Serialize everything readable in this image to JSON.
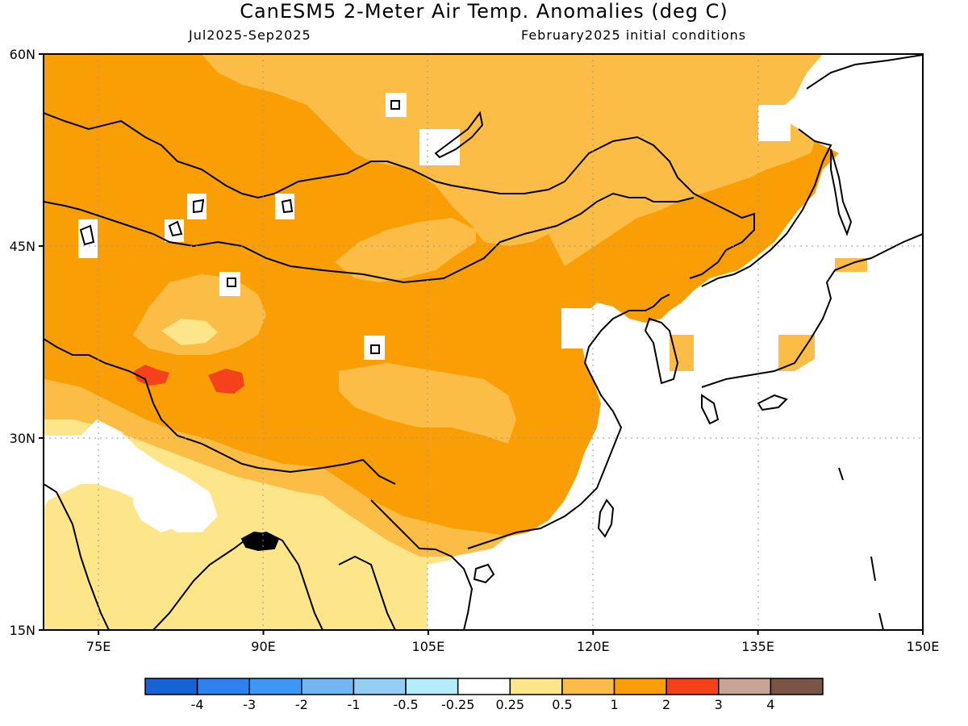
{
  "header": {
    "title": "CanESM5 2-Meter Air Temp. Anomalies (deg C)",
    "period": "Jul2025-Sep2025",
    "init": "February2025 initial conditions"
  },
  "map": {
    "region": {
      "lon_min": 70,
      "lon_max": 150,
      "lat_min": 15,
      "lat_max": 60
    },
    "lat_ticks": [
      {
        "value": 60,
        "label": "60N"
      },
      {
        "value": 45,
        "label": "45N"
      },
      {
        "value": 30,
        "label": "30N"
      },
      {
        "value": 15,
        "label": "15N"
      }
    ],
    "lon_ticks": [
      {
        "value": 75,
        "label": "75E"
      },
      {
        "value": 90,
        "label": "90E"
      },
      {
        "value": 105,
        "label": "105E"
      },
      {
        "value": 120,
        "label": "120E"
      },
      {
        "value": 135,
        "label": "135E"
      },
      {
        "value": 150,
        "label": "150E"
      }
    ],
    "gridlines": "dotted",
    "colors": {
      "0.25-0.5": "#fde58a",
      "0.5-1": "#fbbd45",
      "1-2": "#f99f05",
      "2-3": "#f5421a"
    }
  },
  "colorbar": {
    "colors": [
      "#1763d6",
      "#2d82ee",
      "#3c98f4",
      "#74b6f4",
      "#95cef4",
      "#b4ecfa",
      "#ffffff",
      "#fde58a",
      "#fbbd45",
      "#f99f05",
      "#f5421a",
      "#c8a497",
      "#7b5448"
    ],
    "labels": [
      "-4",
      "-3",
      "-2",
      "-1",
      "-0.5",
      "-0.25",
      "0.25",
      "0.5",
      "1",
      "2",
      "3",
      "4"
    ]
  }
}
